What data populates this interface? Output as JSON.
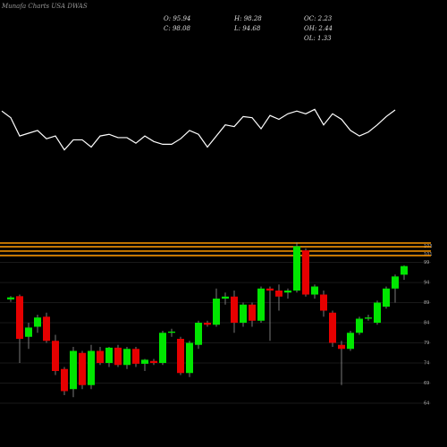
{
  "chart_data": {
    "type": "candlestick",
    "title": "Munafa Charts USA DWAS",
    "stats": {
      "open": "O: 95.94",
      "high": "H: 98.28",
      "oc": "OC: 2.23",
      "close": "C: 98.08",
      "low": "L: 94.68",
      "oh": "OH: 2.44",
      "ol": "OL: 1.33"
    },
    "open": [
      89.8,
      90.6,
      80.5,
      83.0,
      85.5,
      79.5,
      72.5,
      67.5,
      76.5,
      68.5,
      77.0,
      74.0,
      77.8,
      73.5,
      77.5,
      73.8,
      74.5,
      74.0,
      81.5,
      80.0,
      71.5,
      78.5,
      84.0,
      83.5,
      90.0,
      90.5,
      84.0,
      88.5,
      84.5,
      92.5,
      92.0,
      91.5,
      92.0,
      102.0,
      91.0,
      91.0,
      86.5,
      78.5,
      77.5,
      81.5,
      85.0,
      84.0,
      88.0,
      92.5,
      95.94
    ],
    "high": [
      90.6,
      91.0,
      84.0,
      86.0,
      86.5,
      81.0,
      73.0,
      78.0,
      77.0,
      78.5,
      78.0,
      78.0,
      78.5,
      78.0,
      78.0,
      75.0,
      75.0,
      82.0,
      82.5,
      80.5,
      79.5,
      84.5,
      84.5,
      92.5,
      91.5,
      92.0,
      89.0,
      89.0,
      93.0,
      93.0,
      93.5,
      92.5,
      104.0,
      102.5,
      93.5,
      92.0,
      87.0,
      79.5,
      82.0,
      85.5,
      86.0,
      89.5,
      93.0,
      96.0,
      98.28
    ],
    "low": [
      89.2,
      74.0,
      77.5,
      81.5,
      79.0,
      71.0,
      66.0,
      65.5,
      67.5,
      67.5,
      73.5,
      73.0,
      73.0,
      72.5,
      73.0,
      72.0,
      73.5,
      73.5,
      80.5,
      71.0,
      70.5,
      77.5,
      83.0,
      83.0,
      88.5,
      81.5,
      83.0,
      83.0,
      84.0,
      79.5,
      87.0,
      90.0,
      91.5,
      90.5,
      90.0,
      85.5,
      78.0,
      68.5,
      77.0,
      81.0,
      84.5,
      83.5,
      87.5,
      89.0,
      94.68
    ],
    "close": [
      90.3,
      80.0,
      82.8,
      85.3,
      79.5,
      72.0,
      67.0,
      77.0,
      68.5,
      77.0,
      74.0,
      77.8,
      73.5,
      77.5,
      73.8,
      74.8,
      74.0,
      81.5,
      81.8,
      71.5,
      79.0,
      84.0,
      83.5,
      90.0,
      90.5,
      84.0,
      88.5,
      84.5,
      92.5,
      92.0,
      90.5,
      92.0,
      103.0,
      91.0,
      93.0,
      87.0,
      79.0,
      77.5,
      81.5,
      85.0,
      85.3,
      89.0,
      92.5,
      95.5,
      98.08
    ],
    "up_color": "#00e600",
    "down_color": "#e60000",
    "levels": [
      103.8,
      102.9,
      101.8,
      100.7
    ],
    "level_color": "#ff9900",
    "ylim": [
      62,
      106
    ],
    "yticks": [
      64,
      69,
      74,
      79,
      84,
      89,
      94,
      99,
      101,
      103
    ],
    "grid": true,
    "indicator": {
      "values": [
        90,
        78,
        45,
        50,
        55,
        40,
        45,
        20,
        38,
        38,
        25,
        45,
        48,
        42,
        42,
        32,
        45,
        35,
        30,
        30,
        40,
        55,
        48,
        25,
        45,
        65,
        62,
        80,
        78,
        58,
        82,
        75,
        85,
        90,
        85,
        93,
        65,
        85,
        75,
        55,
        45,
        52,
        65,
        80,
        92
      ],
      "ylim": [
        0,
        100
      ],
      "color": "#ffffff"
    }
  }
}
